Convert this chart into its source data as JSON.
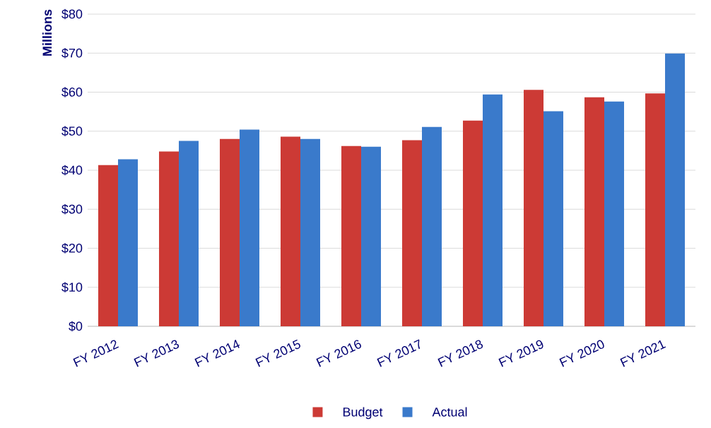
{
  "chart_data": {
    "type": "bar",
    "ylabel": "Millions",
    "categories": [
      "FY 2012",
      "FY 2013",
      "FY 2014",
      "FY 2015",
      "FY 2016",
      "FY 2017",
      "FY 2018",
      "FY 2019",
      "FY 2020",
      "FY 2021"
    ],
    "series": [
      {
        "name": "Budget",
        "color": "#cc3a35",
        "values": [
          41.3,
          44.8,
          48.0,
          48.6,
          46.2,
          47.7,
          52.7,
          60.6,
          58.7,
          59.7
        ]
      },
      {
        "name": "Actual",
        "color": "#3a7acb",
        "values": [
          42.8,
          47.5,
          50.4,
          48.0,
          46.0,
          51.1,
          59.4,
          55.1,
          57.6,
          69.9
        ]
      }
    ],
    "ylim": [
      0,
      80
    ],
    "yticks": [
      {
        "value": 0,
        "label": "$0"
      },
      {
        "value": 10,
        "label": "$10"
      },
      {
        "value": 20,
        "label": "$20"
      },
      {
        "value": 30,
        "label": "$30"
      },
      {
        "value": 40,
        "label": "$40"
      },
      {
        "value": 50,
        "label": "$50"
      },
      {
        "value": 60,
        "label": "$60"
      },
      {
        "value": 70,
        "label": "$70"
      },
      {
        "value": 80,
        "label": "$80"
      }
    ],
    "grid": "y",
    "legend": "bottom"
  }
}
